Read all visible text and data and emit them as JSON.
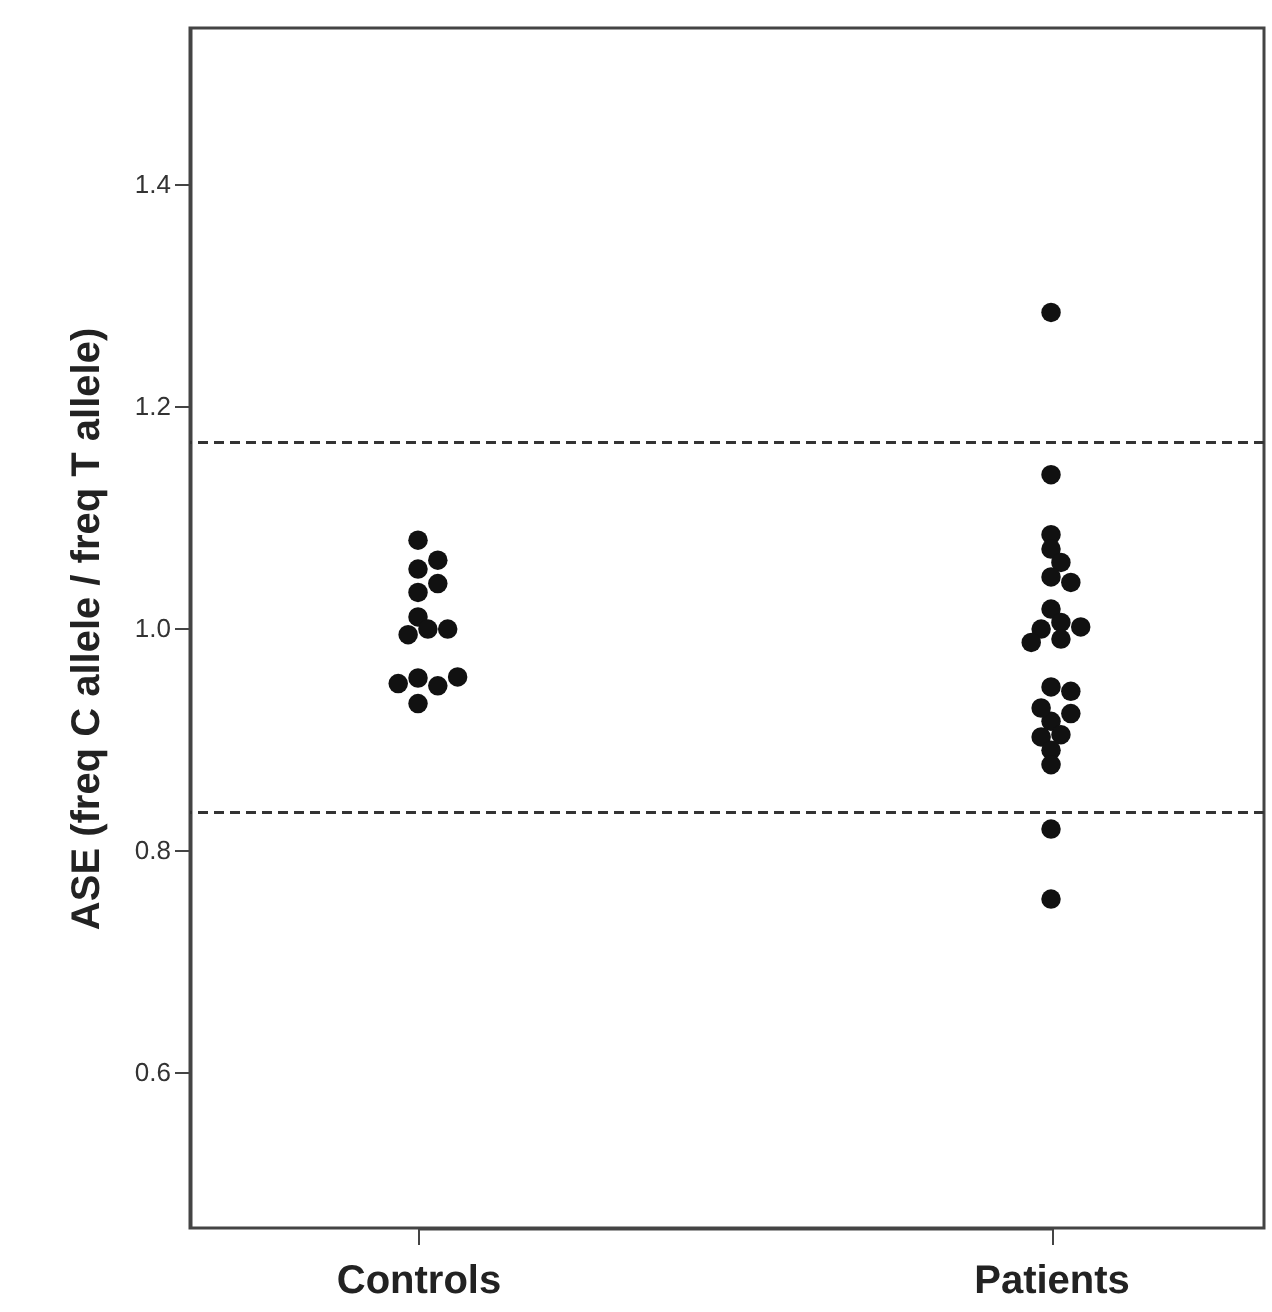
{
  "chart_data": {
    "type": "scatter",
    "ylabel": "ASE (freq C allele / freq T allele)",
    "categories": [
      "Controls",
      "Patients"
    ],
    "ylim": [
      0.46,
      1.54
    ],
    "yticks": [
      0.6,
      0.8,
      {
        "value": 1,
        "label": "1.0"
      },
      1.2,
      1.4
    ],
    "marker": "circle",
    "ref_lines": [
      {
        "axis": "y",
        "value": 1.167,
        "line_style": "dashed",
        "color": "#333333"
      },
      {
        "axis": "y",
        "value": 0.834,
        "line_style": "dashed",
        "color": "#333333"
      }
    ],
    "series": [
      {
        "color": "#111111",
        "x": [
          "Controls",
          "Controls",
          "Controls",
          "Controls",
          "Controls",
          "Controls",
          "Controls",
          "Controls",
          "Controls",
          "Controls",
          "Controls",
          "Controls",
          "Controls",
          "Controls"
        ],
        "values": [
          1.053,
          1.032,
          1.01,
          0.999,
          0.994,
          1.079,
          1.061,
          0.999,
          1.04,
          0.955,
          0.948,
          0.95,
          0.932,
          0.956
        ]
      },
      {
        "color": "#111111",
        "x": [
          "Patients",
          "Patients",
          "Patients",
          "Patients",
          "Patients",
          "Patients",
          "Patients",
          "Patients",
          "Patients",
          "Patients",
          "Patients",
          "Patients",
          "Patients",
          "Patients",
          "Patients",
          "Patients",
          "Patients",
          "Patients",
          "Patients",
          "Patients",
          "Patients",
          "Patients",
          "Patients",
          "Patients"
        ],
        "values": [
          1.284,
          1.138,
          1.084,
          1.071,
          1.059,
          1.046,
          1.041,
          1.017,
          1.005,
          0.999,
          0.99,
          1.001,
          0.987,
          0.947,
          0.943,
          0.916,
          0.923,
          0.928,
          0.904,
          0.902,
          0.89,
          0.877,
          0.819,
          0.756
        ]
      }
    ]
  }
}
